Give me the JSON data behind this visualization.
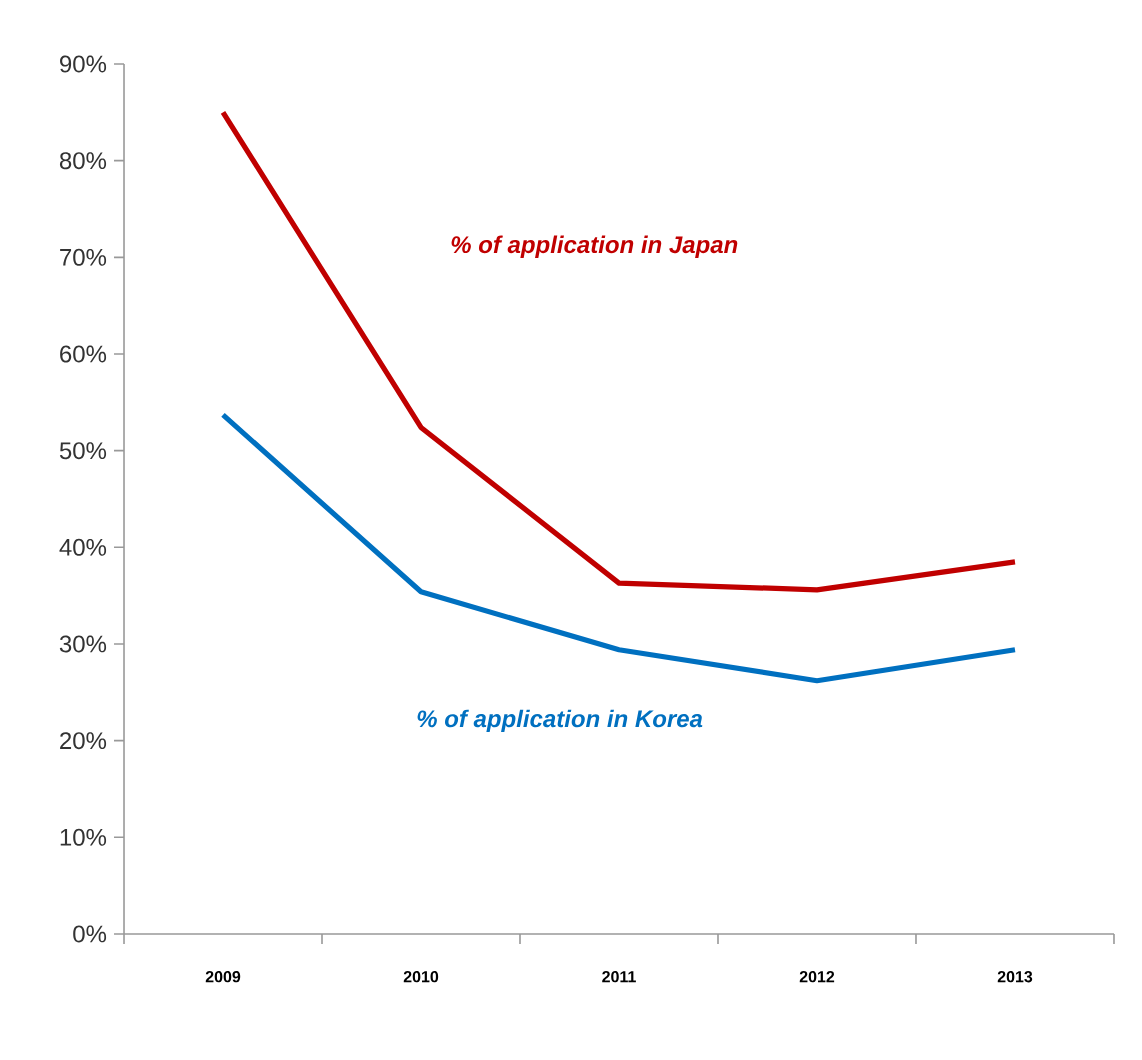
{
  "chart_data": {
    "type": "line",
    "categories": [
      "2009",
      "2010",
      "2011",
      "2012",
      "2013"
    ],
    "series": [
      {
        "name": "% of application  in Japan",
        "color": "#c00000",
        "values": [
          85,
          52.4,
          36.3,
          35.6,
          38.5
        ]
      },
      {
        "name": "% of application  in Korea",
        "color": "#0070c0",
        "values": [
          53.7,
          35.4,
          29.4,
          26.2,
          29.4
        ]
      }
    ],
    "ylim": [
      0,
      90
    ],
    "yticks": [
      {
        "value": 0,
        "label": "0%"
      },
      {
        "value": 10,
        "label": "10%"
      },
      {
        "value": 20,
        "label": "20%"
      },
      {
        "value": 30,
        "label": "30%"
      },
      {
        "value": 40,
        "label": "40%"
      },
      {
        "value": 50,
        "label": "50%"
      },
      {
        "value": 60,
        "label": "60%"
      },
      {
        "value": 70,
        "label": "70%"
      },
      {
        "value": 80,
        "label": "80%"
      },
      {
        "value": 90,
        "label": "90%"
      }
    ],
    "grid": false,
    "legend": false,
    "marker": "none",
    "line_style": "solid"
  }
}
